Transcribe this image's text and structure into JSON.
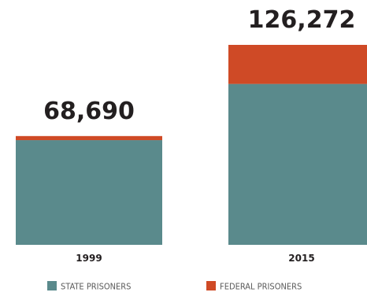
{
  "chart_data": {
    "type": "bar",
    "stacked": true,
    "categories": [
      "1999",
      "2015"
    ],
    "series": [
      {
        "name": "STATE PRISONERS",
        "color": "#5a8a8c",
        "values": [
          66100,
          101600
        ]
      },
      {
        "name": "FEDERAL PRISONERS",
        "color": "#cf4a26",
        "values": [
          2590,
          24672
        ]
      }
    ],
    "totals": [
      "68,690",
      "126,272"
    ],
    "ylim": [
      0,
      126272
    ],
    "legend_position": "bottom",
    "grid": false,
    "title": "",
    "xlabel": "",
    "ylabel": ""
  }
}
